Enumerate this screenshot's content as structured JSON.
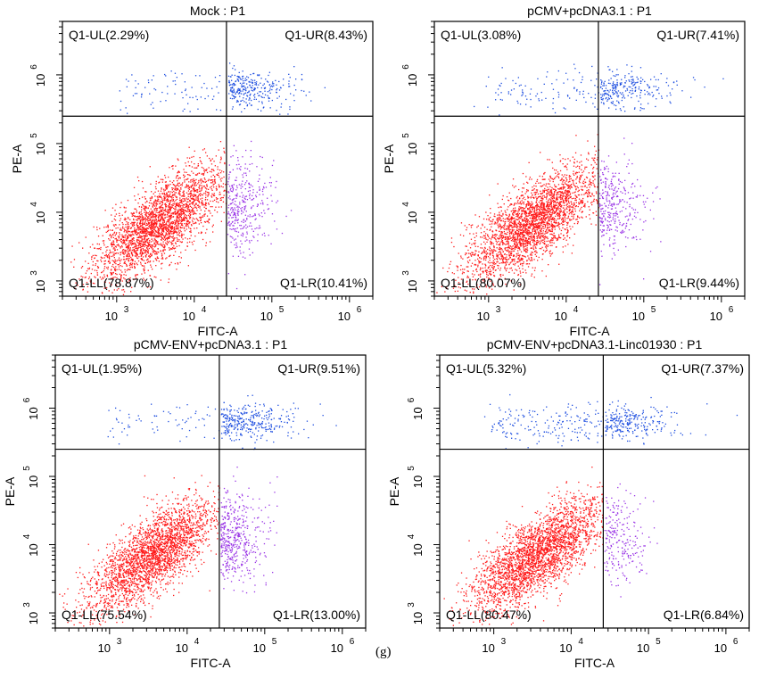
{
  "figure_label": "(g)",
  "colors": {
    "LL": "#ff1a1a",
    "UL": "#1f4fe0",
    "UR": "#1f4fe0",
    "LR": "#9a35e6",
    "axis": "#000000"
  },
  "chart_data": [
    {
      "type": "scatter",
      "title": "Mock : P1",
      "xlabel": "FITC-A",
      "ylabel": "PE-A",
      "xscale": "log",
      "yscale": "log",
      "xlim": [
        200,
        2000000
      ],
      "ylim": [
        600,
        6000000
      ],
      "x_ticks": [
        {
          "base": "10",
          "exp": "3"
        },
        {
          "base": "10",
          "exp": "4"
        },
        {
          "base": "10",
          "exp": "5"
        },
        {
          "base": "10",
          "exp": "6"
        }
      ],
      "y_ticks": [
        {
          "base": "10",
          "exp": "3"
        },
        {
          "base": "10",
          "exp": "4"
        },
        {
          "base": "10",
          "exp": "5"
        },
        {
          "base": "10",
          "exp": "6"
        }
      ],
      "gate_x": 26000,
      "gate_y": 250000,
      "quadrants": {
        "UL": "Q1-UL(2.29%)",
        "UR": "Q1-UR(8.43%)",
        "LL": "Q1-LL(78.87%)",
        "LR": "Q1-LR(10.41%)"
      },
      "percentages": {
        "UL": 2.29,
        "UR": 8.43,
        "LL": 78.87,
        "LR": 10.41
      }
    },
    {
      "type": "scatter",
      "title": "pCMV+pcDNA3.1 : P1",
      "xlabel": "FITC-A",
      "ylabel": "PE-A",
      "xscale": "log",
      "yscale": "log",
      "xlim": [
        200,
        2000000
      ],
      "ylim": [
        600,
        6000000
      ],
      "x_ticks": [
        {
          "base": "10",
          "exp": "3"
        },
        {
          "base": "10",
          "exp": "4"
        },
        {
          "base": "10",
          "exp": "5"
        },
        {
          "base": "10",
          "exp": "6"
        }
      ],
      "y_ticks": [
        {
          "base": "10",
          "exp": "3"
        },
        {
          "base": "10",
          "exp": "4"
        },
        {
          "base": "10",
          "exp": "5"
        },
        {
          "base": "10",
          "exp": "6"
        }
      ],
      "gate_x": 26000,
      "gate_y": 250000,
      "quadrants": {
        "UL": "Q1-UL(3.08%)",
        "UR": "Q1-UR(7.41%)",
        "LL": "Q1-LL(80.07%)",
        "LR": "Q1-LR(9.44%)"
      },
      "percentages": {
        "UL": 3.08,
        "UR": 7.41,
        "LL": 80.07,
        "LR": 9.44
      }
    },
    {
      "type": "scatter",
      "title": "pCMV-ENV+pcDNA3.1 : P1",
      "xlabel": "FITC-A",
      "ylabel": "PE-A",
      "xscale": "log",
      "yscale": "log",
      "xlim": [
        200,
        2000000
      ],
      "ylim": [
        600,
        6000000
      ],
      "x_ticks": [
        {
          "base": "10",
          "exp": "3"
        },
        {
          "base": "10",
          "exp": "4"
        },
        {
          "base": "10",
          "exp": "5"
        },
        {
          "base": "10",
          "exp": "6"
        }
      ],
      "y_ticks": [
        {
          "base": "10",
          "exp": "3"
        },
        {
          "base": "10",
          "exp": "4"
        },
        {
          "base": "10",
          "exp": "5"
        },
        {
          "base": "10",
          "exp": "6"
        }
      ],
      "gate_x": 26000,
      "gate_y": 250000,
      "quadrants": {
        "UL": "Q1-UL(1.95%)",
        "UR": "Q1-UR(9.51%)",
        "LL": "Q1-LL(75.54%)",
        "LR": "Q1-LR(13.00%)"
      },
      "percentages": {
        "UL": 1.95,
        "UR": 9.51,
        "LL": 75.54,
        "LR": 13.0
      }
    },
    {
      "type": "scatter",
      "title": "pCMV-ENV+pcDNA3.1-Linc01930 : P1",
      "xlabel": "FITC-A",
      "ylabel": "PE-A",
      "xscale": "log",
      "yscale": "log",
      "xlim": [
        200,
        2000000
      ],
      "ylim": [
        600,
        6000000
      ],
      "x_ticks": [
        {
          "base": "10",
          "exp": "3"
        },
        {
          "base": "10",
          "exp": "4"
        },
        {
          "base": "10",
          "exp": "5"
        },
        {
          "base": "10",
          "exp": "6"
        }
      ],
      "y_ticks": [
        {
          "base": "10",
          "exp": "3"
        },
        {
          "base": "10",
          "exp": "4"
        },
        {
          "base": "10",
          "exp": "5"
        },
        {
          "base": "10",
          "exp": "6"
        }
      ],
      "gate_x": 26000,
      "gate_y": 250000,
      "quadrants": {
        "UL": "Q1-UL(5.32%)",
        "UR": "Q1-UR(7.37%)",
        "LL": "Q1-LL(80.47%)",
        "LR": "Q1-LR(6.84%)"
      },
      "percentages": {
        "UL": 5.32,
        "UR": 7.37,
        "LL": 80.47,
        "LR": 6.84
      }
    }
  ]
}
